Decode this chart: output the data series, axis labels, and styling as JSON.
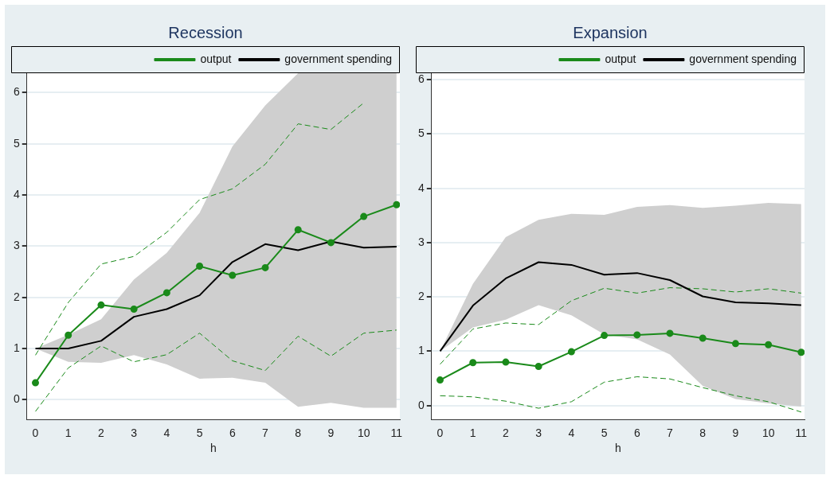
{
  "chart_data": [
    {
      "type": "line",
      "title": "Recession",
      "xlabel": "h",
      "x": [
        0,
        1,
        2,
        3,
        4,
        5,
        6,
        7,
        8,
        9,
        10,
        11
      ],
      "xlim": [
        -0.26,
        11.1
      ],
      "xticks": [
        0,
        1,
        2,
        3,
        4,
        5,
        6,
        7,
        8,
        9,
        10,
        11
      ],
      "ylim": [
        -0.39,
        6.38
      ],
      "yticks": [
        0,
        1,
        2,
        3,
        4,
        5,
        6
      ],
      "grid": "y",
      "legend": "top right",
      "series": [
        {
          "name": "output",
          "color": "#1a8a1a",
          "marker": "circle",
          "values": [
            0.33,
            1.26,
            1.85,
            1.77,
            2.09,
            2.61,
            2.43,
            2.58,
            3.32,
            3.07,
            3.58,
            3.81
          ]
        },
        {
          "name": "government spending",
          "color": "#000000",
          "marker": "none",
          "values": [
            1.0,
            1.0,
            1.15,
            1.62,
            1.77,
            2.04,
            2.69,
            3.04,
            2.92,
            3.09,
            2.97,
            2.99
          ],
          "lower": [
            1.0,
            0.74,
            0.72,
            0.87,
            0.69,
            0.41,
            0.43,
            0.33,
            -0.14,
            -0.06,
            -0.16,
            -0.16
          ],
          "upper": [
            1.0,
            1.27,
            1.57,
            2.35,
            2.87,
            3.65,
            4.95,
            5.75,
            6.38,
            6.38,
            6.38,
            6.38
          ]
        },
        {
          "color": "#1a8a1a",
          "marker": "none",
          "line_style": "dashed",
          "values": [
            0.87,
            1.9,
            2.65,
            2.8,
            3.27,
            3.91,
            4.12,
            4.6,
            5.39,
            5.28,
            5.8,
            null
          ]
        },
        {
          "color": "#1a8a1a",
          "marker": "none",
          "line_style": "dashed",
          "values": [
            -0.23,
            0.62,
            1.05,
            0.74,
            0.88,
            1.3,
            0.76,
            0.57,
            1.24,
            0.85,
            1.3,
            1.36
          ]
        }
      ]
    },
    {
      "type": "line",
      "title": "Expansion",
      "xlabel": "h",
      "x": [
        0,
        1,
        2,
        3,
        4,
        5,
        6,
        7,
        8,
        9,
        10,
        11
      ],
      "xlim": [
        -0.26,
        11.1
      ],
      "xticks": [
        0,
        1,
        2,
        3,
        4,
        5,
        6,
        7,
        8,
        9,
        10,
        11
      ],
      "ylim": [
        -0.26,
        6.12
      ],
      "yticks": [
        0,
        1,
        2,
        3,
        4,
        5,
        6
      ],
      "grid": "y",
      "legend": "top right",
      "series": [
        {
          "name": "output",
          "color": "#1a8a1a",
          "marker": "circle",
          "values": [
            0.47,
            0.79,
            0.8,
            0.72,
            0.99,
            1.29,
            1.3,
            1.33,
            1.24,
            1.14,
            1.12,
            0.98
          ]
        },
        {
          "name": "government spending",
          "color": "#000000",
          "marker": "none",
          "values": [
            1.0,
            1.84,
            2.34,
            2.64,
            2.59,
            2.41,
            2.44,
            2.31,
            2.01,
            1.9,
            1.88,
            1.85
          ],
          "lower": [
            1.0,
            1.44,
            1.58,
            1.85,
            1.66,
            1.31,
            1.22,
            0.94,
            0.36,
            0.12,
            0.04,
            -0.02
          ],
          "upper": [
            1.0,
            2.24,
            3.1,
            3.42,
            3.53,
            3.51,
            3.66,
            3.69,
            3.64,
            3.68,
            3.73,
            3.71
          ]
        },
        {
          "color": "#1a8a1a",
          "marker": "none",
          "line_style": "dashed",
          "values": [
            0.76,
            1.41,
            1.52,
            1.49,
            1.93,
            2.16,
            2.07,
            2.17,
            2.15,
            2.09,
            2.15,
            2.07
          ]
        },
        {
          "color": "#1a8a1a",
          "marker": "none",
          "line_style": "dashed",
          "values": [
            0.18,
            0.16,
            0.08,
            -0.05,
            0.07,
            0.43,
            0.53,
            0.49,
            0.33,
            0.18,
            0.07,
            -0.12
          ]
        }
      ]
    }
  ]
}
